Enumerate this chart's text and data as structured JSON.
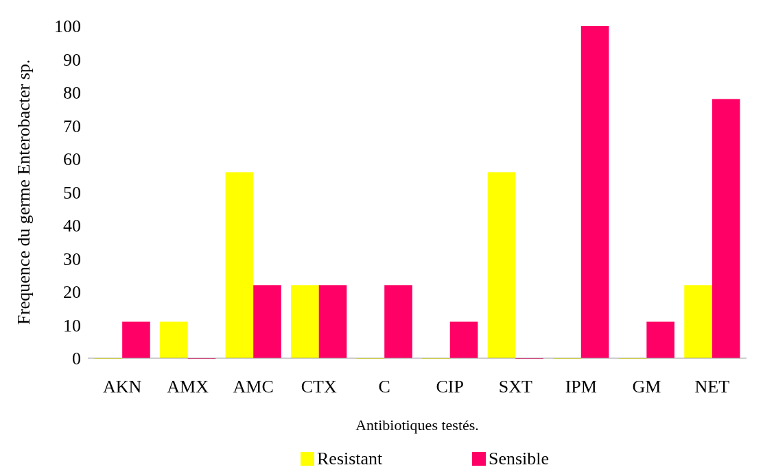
{
  "chart_data": {
    "type": "bar",
    "xlabel": "Antibiotiques testés.",
    "ylabel": "Frequence du germe Enterobacter sp.",
    "categories": [
      "AKN",
      "AMX",
      "AMC",
      "CTX",
      "C",
      "CIP",
      "SXT",
      "IPM",
      "GM",
      "NET"
    ],
    "series": [
      {
        "name": "Resistant",
        "color": "#ffff00",
        "values": [
          0,
          11,
          56,
          22,
          0,
          0,
          56,
          0,
          0,
          22
        ]
      },
      {
        "name": "Sensible",
        "color": "#ff0066",
        "values": [
          11,
          0,
          22,
          22,
          22,
          11,
          0,
          100,
          11,
          78
        ]
      }
    ],
    "ylim": [
      0,
      100
    ],
    "yticks": [
      0,
      10,
      20,
      30,
      40,
      50,
      60,
      70,
      80,
      90,
      100
    ],
    "grid": false,
    "legend": "bottom"
  }
}
